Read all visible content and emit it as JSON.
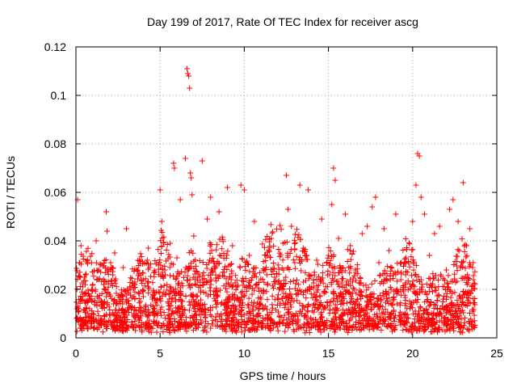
{
  "chart_data": {
    "type": "scatter",
    "title": "Day 199 of 2017, Rate Of TEC Index for receiver ascg",
    "xlabel": "GPS time / hours",
    "ylabel": "ROTI / TECUs",
    "xlim": [
      0,
      25
    ],
    "ylim": [
      0,
      0.12
    ],
    "x_ticks": [
      0,
      5,
      10,
      15,
      20,
      25
    ],
    "x_tick_labels": [
      "0",
      "5",
      "10",
      "15",
      "20",
      "25"
    ],
    "y_ticks": [
      0,
      0.02,
      0.04,
      0.06,
      0.08,
      0.1,
      0.12
    ],
    "y_tick_labels": [
      "0",
      "0.02",
      "0.04",
      "0.06",
      "0.08",
      "0.1",
      "0.12"
    ],
    "grid": true,
    "marker": "+",
    "color": "#ff0000",
    "series": [
      {
        "x": [
          0.05,
          0.1,
          0.2,
          0.3,
          0.4,
          0.5,
          0.6,
          0.8,
          1.0,
          1.2,
          1.5,
          1.8,
          1.85,
          1.9,
          2.0,
          2.3,
          2.5,
          2.8,
          3.0,
          3.2,
          3.5,
          3.8,
          4.0,
          4.3,
          4.6,
          4.9,
          5.0,
          5.1,
          5.3,
          5.6,
          5.8,
          5.85,
          6.0,
          6.2,
          6.5,
          6.6,
          6.65,
          6.7,
          6.75,
          6.8,
          6.85,
          6.9,
          7.0,
          7.2,
          7.5,
          7.8,
          8.0,
          8.2,
          8.5,
          8.8,
          9.0,
          9.3,
          9.5,
          9.8,
          10.0,
          10.3,
          10.6,
          11.0,
          11.3,
          11.6,
          12.0,
          12.3,
          12.5,
          12.6,
          12.8,
          13.0,
          13.3,
          13.5,
          13.8,
          14.0,
          14.3,
          14.6,
          15.0,
          15.2,
          15.3,
          15.4,
          15.6,
          15.8,
          16.0,
          16.3,
          16.6,
          17.0,
          17.3,
          17.6,
          17.8,
          18.0,
          18.3,
          18.6,
          19.0,
          19.3,
          19.6,
          20.0,
          20.2,
          20.3,
          20.4,
          20.5,
          20.7,
          21.0,
          21.3,
          21.6,
          22.0,
          22.2,
          22.4,
          22.7,
          23.0,
          23.2,
          23.4,
          23.6,
          23.7
        ],
        "y": [
          0.012,
          0.057,
          0.031,
          0.038,
          0.017,
          0.025,
          0.015,
          0.009,
          0.022,
          0.04,
          0.013,
          0.052,
          0.044,
          0.028,
          0.018,
          0.035,
          0.014,
          0.029,
          0.045,
          0.021,
          0.016,
          0.011,
          0.024,
          0.037,
          0.019,
          0.03,
          0.061,
          0.048,
          0.026,
          0.039,
          0.072,
          0.07,
          0.033,
          0.057,
          0.074,
          0.111,
          0.109,
          0.108,
          0.103,
          0.068,
          0.066,
          0.059,
          0.042,
          0.025,
          0.073,
          0.049,
          0.058,
          0.031,
          0.052,
          0.027,
          0.062,
          0.038,
          0.021,
          0.063,
          0.061,
          0.034,
          0.048,
          0.016,
          0.029,
          0.041,
          0.023,
          0.039,
          0.067,
          0.053,
          0.046,
          0.031,
          0.063,
          0.037,
          0.061,
          0.021,
          0.032,
          0.049,
          0.034,
          0.055,
          0.07,
          0.065,
          0.041,
          0.027,
          0.051,
          0.038,
          0.028,
          0.043,
          0.046,
          0.054,
          0.058,
          0.031,
          0.045,
          0.036,
          0.051,
          0.024,
          0.033,
          0.048,
          0.063,
          0.076,
          0.075,
          0.058,
          0.051,
          0.034,
          0.043,
          0.046,
          0.028,
          0.053,
          0.057,
          0.048,
          0.064,
          0.038,
          0.045,
          0.031,
          0.022
        ]
      }
    ]
  }
}
